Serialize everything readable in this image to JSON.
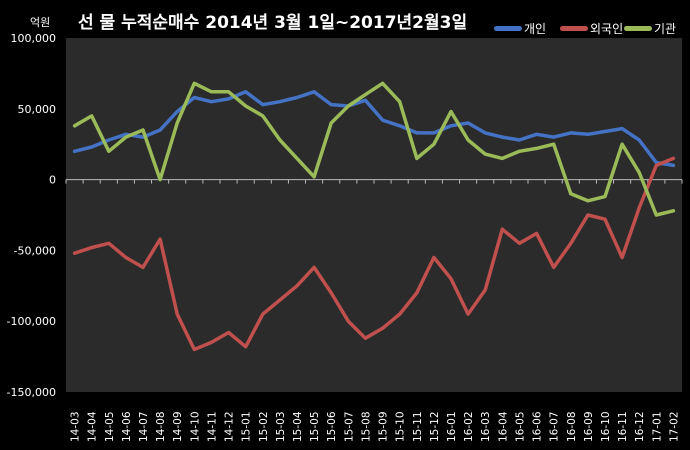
{
  "chart_data": {
    "type": "line",
    "title": "선 물 누적순매수 2014년 3월 1일~2017년2월3일",
    "unit_label": "억원",
    "ylim": [
      -150000,
      100000
    ],
    "y_ticks": [
      "100,000",
      "50,000",
      "0",
      "-50,000",
      "-100,000",
      "-150,000"
    ],
    "y_tick_values": [
      100000,
      50000,
      0,
      -50000,
      -100000,
      -150000
    ],
    "x_ticks": [
      "14-03",
      "14-04",
      "14-05",
      "14-06",
      "14-07",
      "14-08",
      "14-09",
      "14-10",
      "14-11",
      "14-12",
      "15-01",
      "15-02",
      "15-03",
      "15-04",
      "15-05",
      "15-06",
      "15-07",
      "15-08",
      "15-09",
      "15-10",
      "15-11",
      "15-12",
      "16-01",
      "16-02",
      "16-03",
      "16-04",
      "16-05",
      "16-06",
      "16-07",
      "16-08",
      "16-09",
      "16-10",
      "16-11",
      "16-12",
      "17-01",
      "17-02"
    ],
    "legend_position": "top-right",
    "series": [
      {
        "name": "개인",
        "color": "#4472C4",
        "values": [
          20000,
          23000,
          28000,
          32000,
          30000,
          35000,
          48000,
          58000,
          55000,
          57000,
          62000,
          53000,
          55000,
          58000,
          62000,
          53000,
          52000,
          56000,
          42000,
          38000,
          33000,
          33000,
          38000,
          40000,
          33000,
          30000,
          28000,
          32000,
          30000,
          33000,
          32000,
          34000,
          36000,
          28000,
          12000,
          10000
        ]
      },
      {
        "name": "외국인",
        "color": "#C0504D",
        "values": [
          -52000,
          -48000,
          -45000,
          -55000,
          -62000,
          -42000,
          -95000,
          -120000,
          -115000,
          -108000,
          -118000,
          -95000,
          -85000,
          -75000,
          -62000,
          -80000,
          -100000,
          -112000,
          -105000,
          -95000,
          -80000,
          -55000,
          -70000,
          -95000,
          -78000,
          -35000,
          -45000,
          -38000,
          -62000,
          -45000,
          -25000,
          -28000,
          -55000,
          -20000,
          10000,
          15000
        ]
      },
      {
        "name": "기관",
        "color": "#9BBB59",
        "values": [
          38000,
          45000,
          20000,
          30000,
          35000,
          0,
          40000,
          68000,
          62000,
          62000,
          52000,
          45000,
          28000,
          15000,
          2000,
          40000,
          52000,
          60000,
          68000,
          55000,
          15000,
          25000,
          48000,
          28000,
          18000,
          15000,
          20000,
          22000,
          25000,
          -10000,
          -15000,
          -12000,
          25000,
          5000,
          -25000,
          -22000
        ]
      }
    ]
  }
}
